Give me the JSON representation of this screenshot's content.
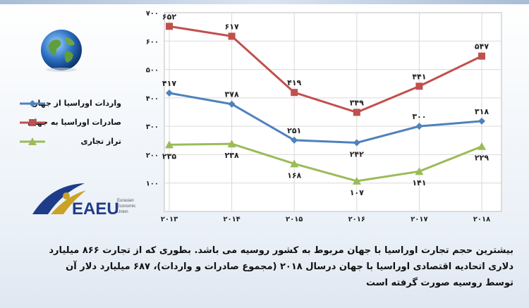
{
  "chart_data": {
    "type": "line",
    "categories": [
      "۲۰۱۳",
      "۲۰۱۴",
      "۲۰۱۵",
      "۲۰۱۶",
      "۲۰۱۷",
      "۲۰۱۸"
    ],
    "ylim": [
      0,
      700
    ],
    "yticks": [
      0,
      100,
      200,
      300,
      400,
      500,
      600,
      700
    ],
    "ytick_labels": [
      "",
      "۱۰۰",
      "۲۰۰",
      "۳۰۰",
      "۴۰۰",
      "۵۰۰",
      "۶۰۰",
      "۷۰۰"
    ],
    "grid": true,
    "legend_position": "left",
    "series": [
      {
        "name": "واردات اوراسیا از جهان",
        "color": "#4f81bd",
        "marker": "diamond",
        "values": [
          417,
          378,
          251,
          242,
          300,
          318
        ],
        "labels": [
          "۴۱۷",
          "۳۷۸",
          "۲۵۱",
          "۲۴۲",
          "۳۰۰",
          "۳۱۸"
        ],
        "label_positions": [
          "above",
          "above",
          "above",
          "below",
          "above",
          "above"
        ]
      },
      {
        "name": "صادرات اوراسیا به جهان",
        "color": "#c0504d",
        "marker": "square",
        "values": [
          652,
          617,
          419,
          349,
          441,
          547
        ],
        "labels": [
          "۶۵۲",
          "۶۱۷",
          "۴۱۹",
          "۳۴۹",
          "۴۴۱",
          "۵۴۷"
        ],
        "label_positions": [
          "above",
          "above",
          "above",
          "above",
          "above",
          "above"
        ]
      },
      {
        "name": "تراز تجاری",
        "color": "#9bbb59",
        "marker": "triangle",
        "values": [
          235,
          238,
          168,
          107,
          141,
          229
        ],
        "labels": [
          "۲۳۵",
          "۲۳۸",
          "۱۶۸",
          "۱۰۷",
          "۱۴۱",
          "۲۲۹"
        ],
        "label_positions": [
          "below",
          "below",
          "below",
          "below",
          "below",
          "below"
        ]
      }
    ]
  },
  "logo": {
    "text": "EAEU",
    "subtitle_lines": [
      "Eurasian",
      "Economic",
      "Union"
    ],
    "accent_color": "#1f3c88",
    "gold_color": "#c9a227"
  },
  "caption": {
    "lines": [
      "بیشترین حجم تجارت اوراسیا با جهان مربوط به کشور روسیه می باشد. بطوری که از تجارت ۸۶۶ میلیارد",
      "دلاری اتحادیه اقتصادی اوراسیا با جهان درسال ۲۰۱۸ (مجموع صادرات و واردات)، ۶۸۷ میلیارد دلار آن",
      "توسط روسیه صورت گرفته است"
    ]
  }
}
